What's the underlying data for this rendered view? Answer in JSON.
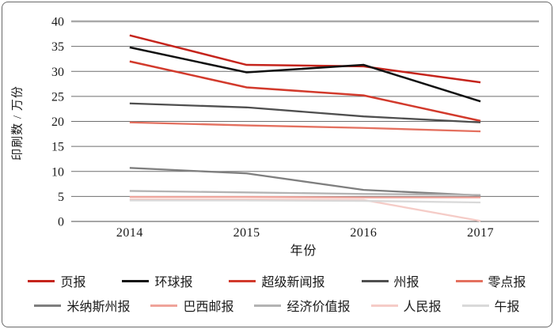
{
  "window": {
    "background": "#ffffff",
    "border_color": "#6a6a6a"
  },
  "chart_data": {
    "type": "line",
    "title": "",
    "xlabel": "年份",
    "ylabel": "印刷数 / 万份",
    "x": [
      "2014",
      "2015",
      "2016",
      "2017"
    ],
    "ylim": [
      0,
      40
    ],
    "yticks": [
      0,
      5,
      10,
      15,
      20,
      25,
      30,
      35,
      40
    ],
    "grid": true,
    "legend_position": "bottom-two-rows",
    "tick_color": "#1a1a1a",
    "gridline_color": "#6e6e6e",
    "top_gridline_color": "#a9a9a9",
    "series": [
      {
        "name": "页报",
        "color": "#c5241c",
        "width": 2.5,
        "values": [
          37.2,
          31.3,
          31.0,
          27.8
        ]
      },
      {
        "name": "环球报",
        "color": "#111111",
        "width": 2.5,
        "values": [
          34.8,
          29.8,
          31.3,
          24.0
        ]
      },
      {
        "name": "超级新闻报",
        "color": "#d23a2c",
        "width": 2.5,
        "values": [
          32.0,
          26.8,
          25.2,
          20.1
        ]
      },
      {
        "name": "州报",
        "color": "#4f4f4f",
        "width": 2.3,
        "values": [
          23.6,
          22.8,
          21.0,
          19.8
        ]
      },
      {
        "name": "零点报",
        "color": "#e4705f",
        "width": 2.3,
        "values": [
          19.8,
          19.2,
          18.7,
          18.0
        ]
      },
      {
        "name": "米纳斯州报",
        "color": "#7f7f7f",
        "width": 2.3,
        "values": [
          10.7,
          9.6,
          6.3,
          5.2
        ]
      },
      {
        "name": "巴西邮报",
        "color": "#efa39a",
        "width": 2.3,
        "values": [
          4.9,
          4.9,
          4.8,
          4.8
        ]
      },
      {
        "name": "经济价值报",
        "color": "#b3b3b3",
        "width": 2.3,
        "values": [
          6.1,
          5.8,
          5.5,
          5.3
        ]
      },
      {
        "name": "人民报",
        "color": "#f5ccc7",
        "width": 2.3,
        "values": [
          4.4,
          4.4,
          4.3,
          0.1
        ]
      },
      {
        "name": "午报",
        "color": "#d9d9d9",
        "width": 2.3,
        "values": [
          4.2,
          4.2,
          4.1,
          3.8
        ]
      }
    ]
  }
}
